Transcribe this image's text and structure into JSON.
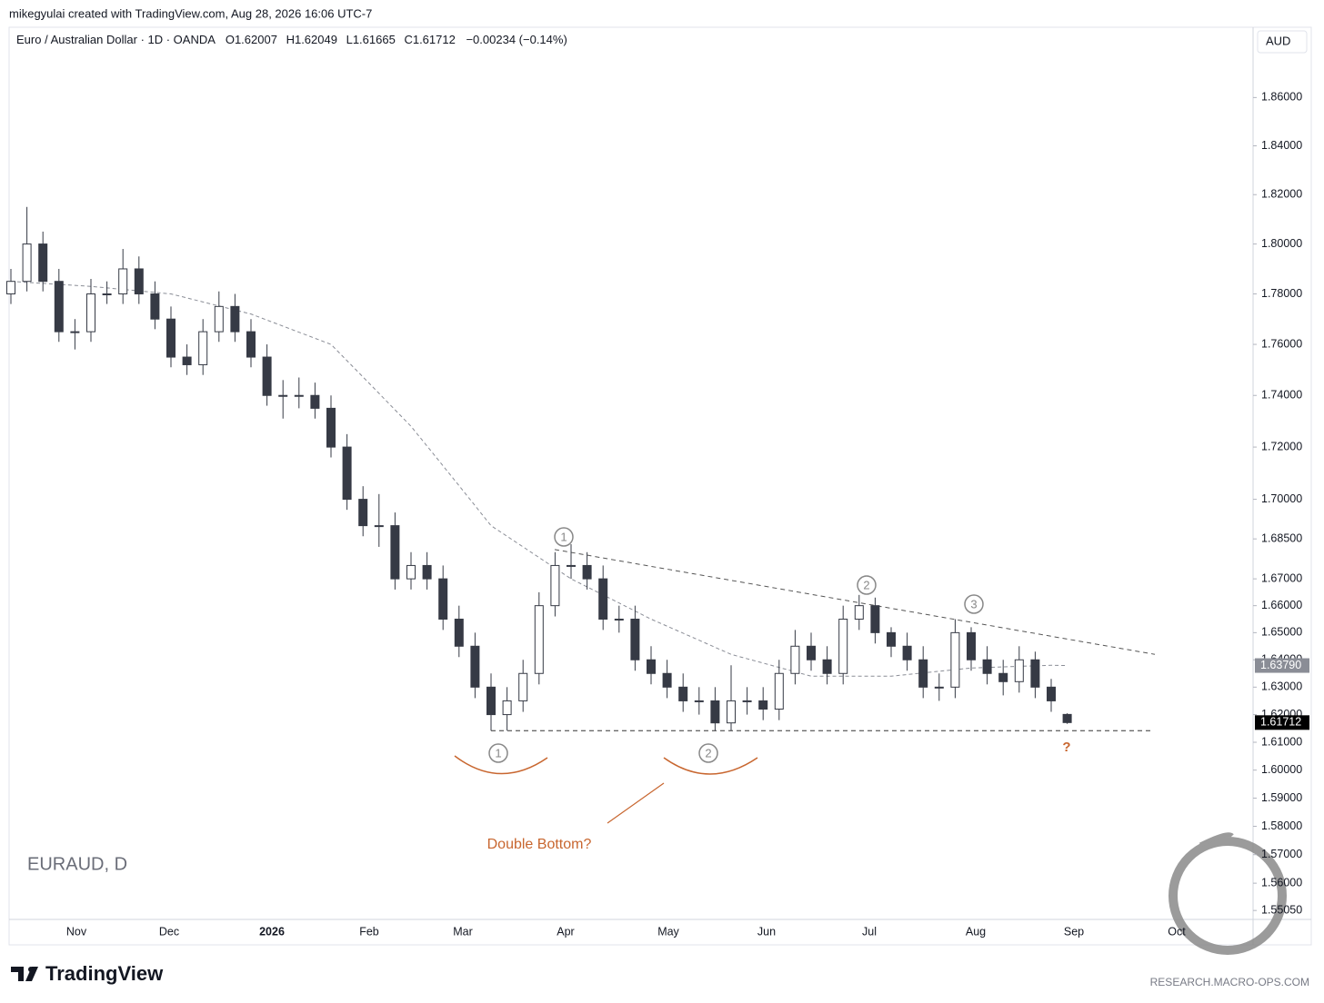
{
  "credit": "mikegyulai created with TradingView.com, Aug 28, 2026 16:06 UTC-7",
  "chart_data": {
    "type": "candlestick",
    "symbol_title": "Euro / Australian Dollar · 1D · OANDA",
    "ohlc_prefixes": [
      "O",
      "H",
      "L",
      "C"
    ],
    "change_label": "−0.00234 (−0.14%)",
    "currency": "AUD",
    "watermark": "EURAUD, D",
    "log_scale": true,
    "up_color": "#ffffff",
    "down_color": "#363a45",
    "ylim": [
      1.5474,
      1.8895
    ],
    "yticks": [
      {
        "value": 1.86,
        "label": "1.86000"
      },
      {
        "value": 1.84,
        "label": "1.84000"
      },
      {
        "value": 1.82,
        "label": "1.82000"
      },
      {
        "value": 1.8,
        "label": "1.80000"
      },
      {
        "value": 1.78,
        "label": "1.78000"
      },
      {
        "value": 1.76,
        "label": "1.76000"
      },
      {
        "value": 1.74,
        "label": "1.74000"
      },
      {
        "value": 1.72,
        "label": "1.72000"
      },
      {
        "value": 1.7,
        "label": "1.70000"
      },
      {
        "value": 1.685,
        "label": "1.68500"
      },
      {
        "value": 1.67,
        "label": "1.67000"
      },
      {
        "value": 1.66,
        "label": "1.66000"
      },
      {
        "value": 1.65,
        "label": "1.65000"
      },
      {
        "value": 1.64,
        "label": "1.64000"
      },
      {
        "value": 1.63,
        "label": "1.63000"
      },
      {
        "value": 1.62,
        "label": "1.62000"
      },
      {
        "value": 1.61,
        "label": "1.61000"
      },
      {
        "value": 1.6,
        "label": "1.60000"
      },
      {
        "value": 1.59,
        "label": "1.59000"
      },
      {
        "value": 1.58,
        "label": "1.58000"
      },
      {
        "value": 1.57,
        "label": "1.57000"
      },
      {
        "value": 1.56,
        "label": "1.56000"
      },
      {
        "value": 1.5505,
        "label": "1.55050"
      }
    ],
    "x_labels": [
      "Nov",
      "Dec",
      "2026",
      "Feb",
      "Mar",
      "Apr",
      "May",
      "Jun",
      "Jul",
      "Aug",
      "Sep",
      "Oct"
    ],
    "open": [
      1.78,
      1.785,
      1.8,
      1.785,
      1.765,
      1.765,
      1.78,
      1.78,
      1.79,
      1.78,
      1.77,
      1.755,
      1.752,
      1.765,
      1.775,
      1.765,
      1.755,
      1.74,
      1.74,
      1.74,
      1.735,
      1.72,
      1.7,
      1.69,
      1.69,
      1.67,
      1.675,
      1.67,
      1.655,
      1.645,
      1.63,
      1.62,
      1.625,
      1.635,
      1.66,
      1.675,
      1.675,
      1.67,
      1.655,
      1.655,
      1.64,
      1.635,
      1.63,
      1.625,
      1.625,
      1.617,
      1.625,
      1.625,
      1.622,
      1.635,
      1.645,
      1.64,
      1.635,
      1.655,
      1.66,
      1.65,
      1.645,
      1.64,
      1.63,
      1.63,
      1.65,
      1.64,
      1.635,
      1.632,
      1.64,
      1.63,
      1.62007
    ],
    "high": [
      1.79,
      1.815,
      1.805,
      1.79,
      1.77,
      1.786,
      1.785,
      1.798,
      1.795,
      1.785,
      1.775,
      1.76,
      1.77,
      1.781,
      1.78,
      1.77,
      1.76,
      1.746,
      1.747,
      1.745,
      1.74,
      1.725,
      1.705,
      1.702,
      1.695,
      1.68,
      1.68,
      1.675,
      1.66,
      1.65,
      1.635,
      1.63,
      1.64,
      1.665,
      1.68,
      1.683,
      1.68,
      1.675,
      1.66,
      1.66,
      1.645,
      1.64,
      1.635,
      1.63,
      1.63,
      1.638,
      1.63,
      1.63,
      1.64,
      1.651,
      1.65,
      1.645,
      1.66,
      1.664,
      1.663,
      1.652,
      1.65,
      1.645,
      1.635,
      1.655,
      1.652,
      1.645,
      1.64,
      1.645,
      1.643,
      1.633,
      1.62049
    ],
    "low": [
      1.776,
      1.781,
      1.781,
      1.761,
      1.758,
      1.761,
      1.776,
      1.776,
      1.776,
      1.766,
      1.751,
      1.748,
      1.748,
      1.761,
      1.761,
      1.751,
      1.736,
      1.731,
      1.735,
      1.731,
      1.716,
      1.696,
      1.686,
      1.682,
      1.666,
      1.666,
      1.666,
      1.651,
      1.641,
      1.626,
      1.6142,
      1.6142,
      1.621,
      1.631,
      1.656,
      1.67,
      1.666,
      1.651,
      1.65,
      1.636,
      1.631,
      1.626,
      1.621,
      1.62,
      1.6142,
      1.6142,
      1.62,
      1.618,
      1.618,
      1.631,
      1.636,
      1.631,
      1.631,
      1.651,
      1.646,
      1.641,
      1.636,
      1.626,
      1.625,
      1.626,
      1.636,
      1.631,
      1.627,
      1.628,
      1.626,
      1.621,
      1.61665
    ],
    "close": [
      1.785,
      1.8,
      1.785,
      1.765,
      1.765,
      1.78,
      1.78,
      1.79,
      1.78,
      1.77,
      1.755,
      1.752,
      1.765,
      1.775,
      1.765,
      1.755,
      1.74,
      1.74,
      1.74,
      1.735,
      1.72,
      1.7,
      1.69,
      1.69,
      1.67,
      1.675,
      1.67,
      1.655,
      1.645,
      1.63,
      1.62,
      1.625,
      1.635,
      1.66,
      1.675,
      1.675,
      1.67,
      1.655,
      1.655,
      1.64,
      1.635,
      1.63,
      1.625,
      1.625,
      1.617,
      1.625,
      1.625,
      1.622,
      1.635,
      1.645,
      1.64,
      1.635,
      1.655,
      1.66,
      1.65,
      1.645,
      1.64,
      1.63,
      1.63,
      1.65,
      1.64,
      1.635,
      1.632,
      1.64,
      1.63,
      1.625,
      1.61712
    ],
    "ma_values": [
      1.785,
      1.7846,
      1.7842,
      1.7838,
      1.7834,
      1.783,
      1.7824,
      1.7818,
      1.7812,
      1.7806,
      1.78,
      1.7784,
      1.7768,
      1.7752,
      1.7736,
      1.772,
      1.7696,
      1.7672,
      1.7648,
      1.7624,
      1.76,
      1.7536,
      1.7472,
      1.7408,
      1.7344,
      1.728,
      1.7204,
      1.7128,
      1.7052,
      1.6976,
      1.69,
      1.686,
      1.682,
      1.678,
      1.674,
      1.67,
      1.667,
      1.664,
      1.661,
      1.658,
      1.655,
      1.6524,
      1.6498,
      1.6472,
      1.6446,
      1.642,
      1.6404,
      1.6388,
      1.6372,
      1.6356,
      1.634,
      1.634,
      1.634,
      1.634,
      1.634,
      1.634,
      1.6346,
      1.6352,
      1.6358,
      1.6364,
      1.637,
      1.6372,
      1.6374,
      1.6376,
      1.6378,
      1.638,
      1.6379
    ],
    "ma_last": {
      "value": 1.6379,
      "label": "1.63790"
    },
    "support_level": 1.6142,
    "resistance_line": [
      1.681,
      1.642
    ],
    "wave_labels": [
      "1",
      "2",
      "3"
    ],
    "bottom_labels": [
      "1",
      "2"
    ],
    "question": "?",
    "pattern_label": "Double Bottom?"
  },
  "footer": {
    "brand": "TradingView",
    "source": "RESEARCH.MACRO-OPS.COM"
  }
}
